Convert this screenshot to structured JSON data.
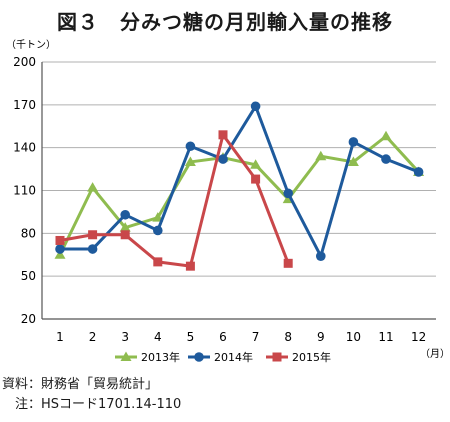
{
  "chart_data": {
    "type": "line",
    "title": "図３　分みつ糖の月別輸入量の推移",
    "ylabel": "（千トン）",
    "xlabel": "（月）",
    "ylim": [
      20,
      200
    ],
    "yticks": [
      20,
      50,
      80,
      110,
      140,
      170,
      200
    ],
    "categories": [
      "1",
      "2",
      "3",
      "4",
      "5",
      "6",
      "7",
      "8",
      "9",
      "10",
      "11",
      "12"
    ],
    "grid": true,
    "legend_position": "bottom",
    "series": [
      {
        "name": "2013年",
        "color": "#8fbc4f",
        "marker": "triangle",
        "values": [
          65,
          112,
          84,
          91,
          130,
          133,
          128,
          104,
          134,
          130,
          148,
          123
        ]
      },
      {
        "name": "2014年",
        "color": "#1e5a9c",
        "marker": "circle",
        "values": [
          69,
          69,
          93,
          82,
          141,
          132,
          169,
          108,
          64,
          144,
          132,
          123
        ]
      },
      {
        "name": "2015年",
        "color": "#c9474a",
        "marker": "square",
        "values": [
          75,
          79,
          79,
          60,
          57,
          149,
          118,
          59,
          null,
          null,
          null,
          null
        ]
      }
    ]
  },
  "notes": {
    "source": "資料：財務省「貿易統計」",
    "note": "　注：HSコード1701.14-110"
  }
}
